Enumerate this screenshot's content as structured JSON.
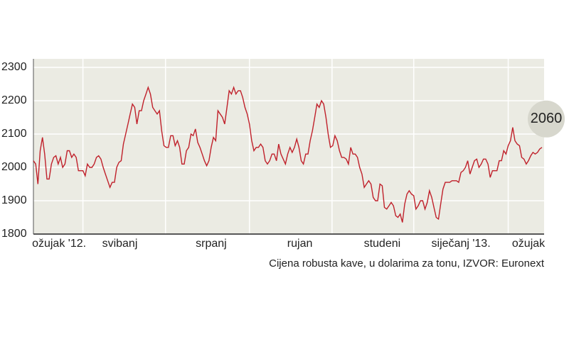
{
  "chart_data": {
    "type": "line",
    "values": [
      2020,
      2010,
      1950,
      2050,
      2090,
      2040,
      1965,
      1965,
      2010,
      2030,
      2035,
      2010,
      2030,
      2000,
      2010,
      2050,
      2050,
      2030,
      2040,
      2030,
      1990,
      1990,
      1990,
      1975,
      2010,
      2000,
      2000,
      2010,
      2030,
      2035,
      2025,
      2000,
      1980,
      1960,
      1940,
      1955,
      1955,
      2000,
      2015,
      2020,
      2070,
      2100,
      2130,
      2160,
      2190,
      2180,
      2130,
      2170,
      2170,
      2200,
      2220,
      2240,
      2220,
      2180,
      2170,
      2160,
      2170,
      2110,
      2065,
      2060,
      2060,
      2095,
      2095,
      2065,
      2080,
      2060,
      2010,
      2010,
      2050,
      2060,
      2100,
      2095,
      2115,
      2075,
      2060,
      2040,
      2020,
      2005,
      2020,
      2060,
      2090,
      2080,
      2170,
      2160,
      2150,
      2130,
      2180,
      2230,
      2220,
      2240,
      2220,
      2230,
      2230,
      2210,
      2180,
      2160,
      2130,
      2080,
      2050,
      2060,
      2060,
      2070,
      2060,
      2020,
      2010,
      2020,
      2040,
      2040,
      2020,
      2070,
      2040,
      2025,
      2010,
      2040,
      2060,
      2045,
      2060,
      2085,
      2060,
      2020,
      2010,
      2040,
      2040,
      2080,
      2110,
      2150,
      2190,
      2180,
      2200,
      2190,
      2150,
      2100,
      2060,
      2065,
      2095,
      2080,
      2050,
      2030,
      2030,
      2025,
      2010,
      2060,
      2040,
      2040,
      2030,
      2000,
      1980,
      1940,
      1950,
      1960,
      1950,
      1910,
      1900,
      1900,
      1950,
      1945,
      1880,
      1875,
      1885,
      1895,
      1885,
      1855,
      1850,
      1860,
      1835,
      1890,
      1920,
      1930,
      1920,
      1915,
      1875,
      1885,
      1900,
      1900,
      1875,
      1895,
      1930,
      1910,
      1880,
      1850,
      1845,
      1890,
      1935,
      1955,
      1955,
      1955,
      1960,
      1960,
      1960,
      1955,
      1985,
      1990,
      2000,
      2020,
      1980,
      2000,
      2020,
      2025,
      2000,
      2010,
      2025,
      2025,
      2010,
      1970,
      1990,
      1990,
      1990,
      2020,
      2020,
      2050,
      2040,
      2065,
      2080,
      2120,
      2080,
      2070,
      2065,
      2030,
      2025,
      2010,
      2020,
      2035,
      2045,
      2040,
      2045,
      2055,
      2060
    ],
    "color": "#c0212b",
    "ylim": [
      1800,
      2300
    ],
    "yticks": [
      1800,
      1900,
      2000,
      2100,
      2200,
      2300
    ],
    "xticks": [
      {
        "value": 11.4,
        "label": "ožujak '12."
      },
      {
        "value": 38.4,
        "label": "svibanj"
      },
      {
        "value": 79,
        "label": "srpanj"
      },
      {
        "value": 118.4,
        "label": "rujan"
      },
      {
        "value": 155,
        "label": "studeni"
      },
      {
        "value": 190,
        "label": "siječanj '13."
      },
      {
        "value": 220,
        "label": "ožujak"
      }
    ],
    "xgrid": [
      22,
      58.7,
      96,
      132.7,
      169,
      211
    ],
    "grid": true,
    "annotation": {
      "text": "2060",
      "value": 2060
    },
    "caption": "Cijena robusta kave, u dolarima za tonu, IZVOR:  Euronext"
  }
}
